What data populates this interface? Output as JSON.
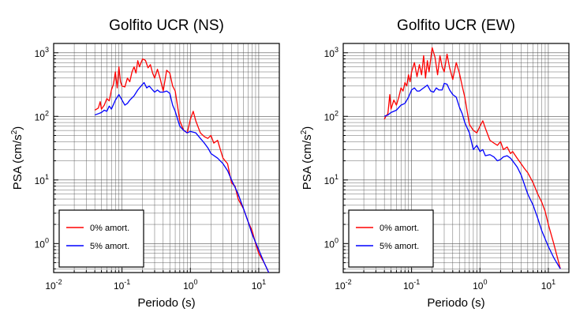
{
  "chart_data": [
    {
      "type": "line",
      "title": "Golfito UCR (NS)",
      "xlabel": "Periodo (s)",
      "ylabel_main": "PSA (cm/s",
      "ylabel_sup": "2",
      "ylabel_close": ")",
      "xscale": "log",
      "yscale": "log",
      "xlim": [
        0.01,
        20
      ],
      "ylim": [
        0.35,
        1400
      ],
      "grid": true,
      "legend_placement": "bottom-left",
      "xticks": [
        {
          "base": "10",
          "exp": "-2"
        },
        {
          "base": "10",
          "exp": "-1"
        },
        {
          "base": "10",
          "exp": "0"
        },
        {
          "base": "10",
          "exp": "1"
        }
      ],
      "yticks": [
        {
          "base": "10",
          "exp": "0"
        },
        {
          "base": "10",
          "exp": "1"
        },
        {
          "base": "10",
          "exp": "2"
        },
        {
          "base": "10",
          "exp": "3"
        }
      ],
      "series": [
        {
          "name": "0% amort.",
          "color": "#ff0000",
          "x": [
            0.04,
            0.045,
            0.048,
            0.05,
            0.055,
            0.06,
            0.065,
            0.07,
            0.075,
            0.08,
            0.085,
            0.09,
            0.095,
            0.1,
            0.11,
            0.12,
            0.13,
            0.14,
            0.15,
            0.16,
            0.17,
            0.18,
            0.19,
            0.2,
            0.22,
            0.24,
            0.26,
            0.28,
            0.3,
            0.33,
            0.36,
            0.4,
            0.45,
            0.5,
            0.55,
            0.6,
            0.7,
            0.8,
            0.9,
            1.0,
            1.1,
            1.2,
            1.4,
            1.6,
            1.8,
            2.0,
            2.2,
            2.5,
            2.8,
            3.0,
            3.5,
            4.0,
            4.5,
            5.0,
            6.0,
            7.0,
            8.0,
            9.0,
            10.0,
            12.0,
            14.0
          ],
          "y": [
            125,
            135,
            170,
            130,
            150,
            190,
            175,
            260,
            320,
            500,
            280,
            600,
            350,
            300,
            290,
            400,
            350,
            500,
            600,
            480,
            750,
            600,
            700,
            800,
            760,
            580,
            650,
            480,
            400,
            550,
            400,
            250,
            530,
            480,
            300,
            250,
            85,
            60,
            55,
            90,
            120,
            85,
            55,
            48,
            45,
            50,
            38,
            42,
            28,
            22,
            18,
            9,
            8,
            5,
            3.5,
            2.2,
            1.6,
            1.0,
            0.7,
            0.5,
            0.35
          ]
        },
        {
          "name": "5% amort.",
          "color": "#0000ff",
          "x": [
            0.04,
            0.045,
            0.05,
            0.055,
            0.06,
            0.065,
            0.07,
            0.08,
            0.09,
            0.1,
            0.11,
            0.12,
            0.13,
            0.15,
            0.17,
            0.19,
            0.21,
            0.23,
            0.25,
            0.28,
            0.3,
            0.33,
            0.36,
            0.4,
            0.45,
            0.5,
            0.55,
            0.6,
            0.7,
            0.8,
            0.9,
            1.0,
            1.2,
            1.4,
            1.6,
            1.8,
            2.0,
            2.5,
            3.0,
            3.5,
            4.0,
            5.0,
            6.0,
            7.0,
            8.0,
            10.0,
            12.0,
            14.0
          ],
          "y": [
            105,
            110,
            115,
            125,
            120,
            145,
            130,
            180,
            220,
            180,
            150,
            160,
            180,
            210,
            260,
            300,
            340,
            280,
            300,
            260,
            240,
            260,
            240,
            240,
            250,
            230,
            150,
            120,
            70,
            60,
            55,
            58,
            55,
            45,
            38,
            32,
            26,
            22,
            18,
            14,
            10,
            6,
            3.5,
            2.2,
            1.4,
            0.8,
            0.5,
            0.35
          ]
        }
      ]
    },
    {
      "type": "line",
      "title": "Golfito UCR (EW)",
      "xlabel": "Periodo (s)",
      "ylabel_main": "PSA (cm/s",
      "ylabel_sup": "2",
      "ylabel_close": ")",
      "xscale": "log",
      "yscale": "log",
      "xlim": [
        0.01,
        20
      ],
      "ylim": [
        0.35,
        1400
      ],
      "grid": true,
      "legend_placement": "bottom-left",
      "xticks": [
        {
          "base": "10",
          "exp": "-2"
        },
        {
          "base": "10",
          "exp": "-1"
        },
        {
          "base": "10",
          "exp": "0"
        },
        {
          "base": "10",
          "exp": "1"
        }
      ],
      "yticks": [
        {
          "base": "10",
          "exp": "0"
        },
        {
          "base": "10",
          "exp": "1"
        },
        {
          "base": "10",
          "exp": "2"
        },
        {
          "base": "10",
          "exp": "3"
        }
      ],
      "series": [
        {
          "name": "0% amort.",
          "color": "#ff0000",
          "x": [
            0.04,
            0.042,
            0.045,
            0.048,
            0.05,
            0.055,
            0.06,
            0.065,
            0.07,
            0.075,
            0.08,
            0.085,
            0.09,
            0.095,
            0.1,
            0.11,
            0.12,
            0.13,
            0.14,
            0.15,
            0.16,
            0.17,
            0.18,
            0.2,
            0.22,
            0.24,
            0.26,
            0.28,
            0.3,
            0.33,
            0.36,
            0.4,
            0.45,
            0.5,
            0.55,
            0.6,
            0.7,
            0.8,
            0.9,
            1.0,
            1.1,
            1.2,
            1.4,
            1.6,
            1.8,
            2.0,
            2.2,
            2.5,
            2.8,
            3.0,
            3.5,
            4.0,
            4.5,
            5.0,
            6.0,
            7.0,
            8.0,
            9.0,
            10.0,
            12.0,
            15.0
          ],
          "y": [
            90,
            100,
            110,
            220,
            130,
            180,
            150,
            200,
            280,
            250,
            340,
            300,
            450,
            350,
            500,
            700,
            420,
            650,
            450,
            900,
            400,
            750,
            500,
            1200,
            850,
            450,
            900,
            600,
            500,
            950,
            580,
            380,
            700,
            480,
            300,
            200,
            75,
            60,
            55,
            70,
            85,
            65,
            42,
            38,
            35,
            40,
            30,
            33,
            26,
            28,
            22,
            18,
            15,
            13,
            9,
            6,
            4.5,
            3.2,
            2.0,
            1.0,
            0.4
          ]
        },
        {
          "name": "5% amort.",
          "color": "#0000ff",
          "x": [
            0.04,
            0.045,
            0.05,
            0.055,
            0.06,
            0.07,
            0.08,
            0.09,
            0.1,
            0.11,
            0.12,
            0.13,
            0.15,
            0.17,
            0.19,
            0.21,
            0.23,
            0.25,
            0.28,
            0.3,
            0.33,
            0.36,
            0.4,
            0.45,
            0.5,
            0.55,
            0.6,
            0.7,
            0.8,
            0.9,
            1.0,
            1.1,
            1.2,
            1.4,
            1.6,
            1.8,
            2.0,
            2.2,
            2.5,
            2.8,
            3.0,
            3.5,
            4.0,
            5.0,
            6.0,
            7.0,
            8.0,
            10.0,
            12.0,
            15.0
          ],
          "y": [
            100,
            105,
            115,
            120,
            125,
            150,
            160,
            200,
            260,
            280,
            250,
            250,
            280,
            310,
            250,
            240,
            280,
            260,
            260,
            330,
            320,
            260,
            220,
            200,
            140,
            110,
            80,
            55,
            30,
            35,
            28,
            30,
            24,
            25,
            23,
            20,
            21,
            23,
            24,
            22,
            20,
            16,
            12,
            6,
            4,
            2.5,
            1.6,
            0.9,
            0.6,
            0.4
          ]
        }
      ]
    }
  ]
}
